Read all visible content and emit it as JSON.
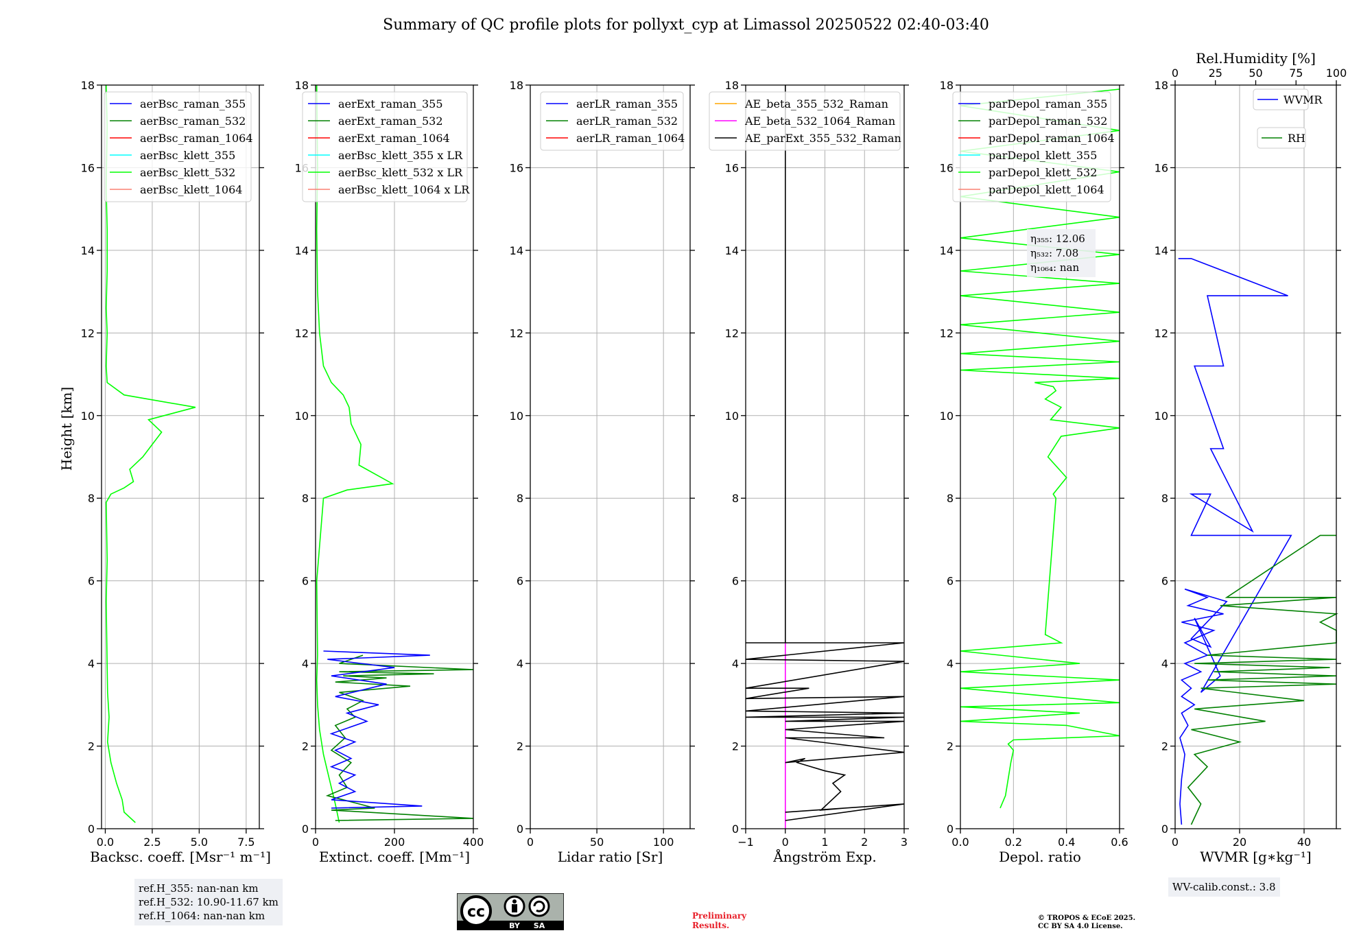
{
  "figure": {
    "title": "Summary of QC profile plots for pollyxt_cyp at Limassol 20250522 02:40-03:40",
    "y_axis_label": "Height [km]",
    "y_ticks": [
      "0",
      "2",
      "4",
      "6",
      "8",
      "10",
      "12",
      "14",
      "16",
      "18"
    ],
    "notes": {
      "ref_h_355": "ref.H_355: nan-nan km",
      "ref_h_532": "ref.H_532: 10.90-11.67 km",
      "ref_h_1064": "ref.H_1064: nan-nan km",
      "wv_calib": "WV-calib.const.: 3.8",
      "preliminary_1": "Preliminary",
      "preliminary_2": "Results.",
      "copyright_1": "© TROPOS & ECoE 2025.",
      "copyright_2": "CC BY SA 4.0 License.",
      "cc_by": "BY",
      "cc_sa": "SA",
      "cc_cc": "cc"
    },
    "colors": {
      "blue": "#0000ff",
      "green": "#008000",
      "red": "#ff0000",
      "cyan": "#00ffff",
      "lime": "#00ff00",
      "salmon": "#fa8072",
      "orange": "#ffa500",
      "magenta": "#ff00ff",
      "black": "#000000",
      "preliminary": "#e8202a"
    }
  },
  "chart_data": [
    {
      "type": "line",
      "panel": "backscatter",
      "xlabel": "Backsc. coeff. [Msr⁻¹ m⁻¹]",
      "xlim": [
        -0.2,
        8.2
      ],
      "xticks": [
        {
          "v": 0,
          "t": "0.0"
        },
        {
          "v": 2.5,
          "t": "2.5"
        },
        {
          "v": 5,
          "t": "5.0"
        },
        {
          "v": 7.5,
          "t": "7.5"
        }
      ],
      "ylim": [
        0,
        18
      ],
      "legend": [
        {
          "name": "aerBsc_raman_355",
          "color": "blue"
        },
        {
          "name": "aerBsc_raman_532",
          "color": "green"
        },
        {
          "name": "aerBsc_raman_1064",
          "color": "red"
        },
        {
          "name": "aerBsc_klett_355",
          "color": "cyan"
        },
        {
          "name": "aerBsc_klett_532",
          "color": "lime"
        },
        {
          "name": "aerBsc_klett_1064",
          "color": "salmon"
        }
      ],
      "series": [
        {
          "name": "aerBsc_klett_532",
          "color": "lime",
          "x": [
            1.6,
            1.0,
            0.9,
            0.6,
            0.3,
            0.12,
            0.2,
            0.12,
            0.1,
            0.08,
            0.05,
            0.1,
            0.05,
            0.3,
            1.0,
            1.5,
            1.3,
            2.0,
            2.5,
            3.0,
            2.3,
            4.8,
            1.0,
            0.1,
            0.05,
            0.1,
            0.05,
            0.1,
            0.1,
            0.05,
            0.1,
            0.05
          ],
          "y": [
            0.15,
            0.4,
            0.7,
            1.1,
            1.6,
            2.1,
            2.7,
            3.3,
            3.9,
            4.5,
            5.5,
            6.5,
            7.9,
            8.1,
            8.25,
            8.4,
            8.7,
            9.0,
            9.3,
            9.6,
            9.9,
            10.2,
            10.5,
            10.8,
            11.2,
            12.0,
            12.6,
            13.5,
            14.5,
            15.5,
            17.0,
            18.0
          ]
        }
      ]
    },
    {
      "type": "line",
      "panel": "extinction",
      "xlabel": "Extinct. coeff. [Mm⁻¹]",
      "xlim": [
        0,
        400
      ],
      "xticks": [
        {
          "v": 0,
          "t": "0"
        },
        {
          "v": 200,
          "t": "200"
        },
        {
          "v": 400,
          "t": "400"
        }
      ],
      "ylim": [
        0,
        18
      ],
      "legend": [
        {
          "name": "aerExt_raman_355",
          "color": "blue"
        },
        {
          "name": "aerExt_raman_532",
          "color": "green"
        },
        {
          "name": "aerExt_raman_1064",
          "color": "red"
        },
        {
          "name": "aerBsc_klett_355 x LR",
          "color": "cyan"
        },
        {
          "name": "aerBsc_klett_532 x LR",
          "color": "lime"
        },
        {
          "name": "aerBsc_klett_1064 x LR",
          "color": "salmon"
        }
      ],
      "series": [
        {
          "name": "aerBsc_klett_532 x LR",
          "color": "lime",
          "x": [
            60,
            50,
            35,
            20,
            10,
            5,
            3,
            5,
            3,
            20,
            80,
            195,
            110,
            115,
            90,
            85,
            70,
            40,
            20,
            10,
            5,
            3,
            5,
            3
          ],
          "y": [
            0.15,
            0.6,
            1.2,
            1.8,
            2.4,
            3.0,
            3.6,
            4.2,
            6.0,
            8.0,
            8.2,
            8.35,
            8.8,
            9.3,
            9.8,
            10.2,
            10.5,
            10.8,
            11.2,
            12.0,
            13.0,
            14.5,
            16.0,
            18.0
          ]
        },
        {
          "name": "aerExt_raman_532",
          "color": "green",
          "x": [
            50,
            400,
            40,
            150,
            30,
            80,
            60,
            90,
            40,
            75,
            50,
            100,
            80,
            120,
            60,
            240,
            50,
            180,
            70,
            300,
            60,
            400,
            60,
            120
          ],
          "y": [
            0.2,
            0.25,
            0.45,
            0.5,
            0.8,
            1.0,
            1.3,
            1.6,
            1.9,
            2.2,
            2.5,
            2.7,
            2.9,
            3.1,
            3.3,
            3.45,
            3.55,
            3.65,
            3.7,
            3.75,
            3.8,
            3.85,
            4.0,
            4.2
          ]
        },
        {
          "name": "aerExt_raman_355",
          "color": "blue",
          "x": [
            40,
            270,
            40,
            100,
            60,
            100,
            40,
            90,
            50,
            100,
            40,
            130,
            80,
            160,
            50,
            180,
            40,
            200,
            30,
            290,
            20
          ],
          "y": [
            0.5,
            0.55,
            0.7,
            0.9,
            1.1,
            1.3,
            1.5,
            1.7,
            1.9,
            2.1,
            2.3,
            2.6,
            2.8,
            3.0,
            3.2,
            3.5,
            3.7,
            3.9,
            4.1,
            4.2,
            4.3
          ]
        }
      ]
    },
    {
      "type": "line",
      "panel": "lidar_ratio",
      "xlabel": "Lidar ratio [Sr]",
      "xlim": [
        0,
        120
      ],
      "xticks": [
        {
          "v": 0,
          "t": "0"
        },
        {
          "v": 50,
          "t": "50"
        },
        {
          "v": 100,
          "t": "100"
        }
      ],
      "ylim": [
        0,
        18
      ],
      "legend": [
        {
          "name": "aerLR_raman_355",
          "color": "blue"
        },
        {
          "name": "aerLR_raman_532",
          "color": "green"
        },
        {
          "name": "aerLR_raman_1064",
          "color": "red"
        }
      ],
      "series": []
    },
    {
      "type": "line",
      "panel": "angstrom",
      "xlabel": "Ångström Exp.",
      "xlim": [
        -1,
        3
      ],
      "xticks": [
        {
          "v": -1,
          "t": "−1"
        },
        {
          "v": 0,
          "t": "0"
        },
        {
          "v": 1,
          "t": "1"
        },
        {
          "v": 2,
          "t": "2"
        },
        {
          "v": 3,
          "t": "3"
        }
      ],
      "ylim": [
        0,
        18
      ],
      "legend": [
        {
          "name": "AE_beta_355_532_Raman",
          "color": "orange"
        },
        {
          "name": "AE_beta_532_1064_Raman",
          "color": "magenta"
        },
        {
          "name": "AE_parExt_355_532_Raman",
          "color": "black"
        }
      ],
      "series": [
        {
          "name": "AE_beta_532_1064_Raman",
          "color": "magenta",
          "x": [
            0,
            0
          ],
          "y": [
            0,
            4.5
          ]
        },
        {
          "name": "AE_parExt_355_532_Raman",
          "color": "black",
          "x": [
            0,
            3,
            0,
            1.5,
            0.9,
            1.4,
            1.2,
            1.5,
            1.0,
            0.3,
            0.5,
            0,
            3,
            0,
            2.5,
            0,
            3,
            0,
            3,
            -1,
            3,
            -1,
            3,
            -1,
            0.6,
            -1,
            3,
            -1,
            3,
            -1,
            3,
            -1,
            0,
            0
          ],
          "y": [
            0.2,
            0.6,
            0.4,
            0.5,
            0.45,
            0.9,
            1.1,
            1.3,
            1.4,
            1.6,
            1.7,
            1.6,
            1.85,
            2.2,
            2.2,
            2.4,
            2.6,
            2.6,
            2.7,
            2.7,
            2.8,
            2.85,
            3.2,
            3.15,
            3.4,
            3.4,
            4.05,
            4.1,
            4.5,
            4.5,
            4.5,
            4.5,
            4.5,
            18
          ]
        }
      ]
    },
    {
      "type": "line",
      "panel": "depolarization",
      "xlabel": "Depol. ratio",
      "xlim": [
        0,
        0.6
      ],
      "xticks": [
        {
          "v": 0,
          "t": "0.0"
        },
        {
          "v": 0.2,
          "t": "0.2"
        },
        {
          "v": 0.4,
          "t": "0.4"
        },
        {
          "v": 0.6,
          "t": "0.6"
        }
      ],
      "ylim": [
        0,
        18
      ],
      "annotation": [
        "η₃₅₅: 12.06",
        "η₅₃₂: 7.08",
        "η₁₀₆₄: nan"
      ],
      "legend": [
        {
          "name": "parDepol_raman_355",
          "color": "blue"
        },
        {
          "name": "parDepol_raman_532",
          "color": "green"
        },
        {
          "name": "parDepol_raman_1064",
          "color": "red"
        },
        {
          "name": "parDepol_klett_355",
          "color": "cyan"
        },
        {
          "name": "parDepol_klett_532",
          "color": "lime"
        },
        {
          "name": "parDepol_klett_1064",
          "color": "salmon"
        }
      ],
      "series": [
        {
          "name": "parDepol_klett_532",
          "color": "lime",
          "x": [
            0.15,
            0.17,
            0.18,
            0.19,
            0.2,
            0.18,
            0.2,
            0.6,
            0.4,
            0.0,
            0.45,
            0.0,
            0.6,
            0.0,
            0.6,
            0.0,
            0.45,
            0.0,
            0.38,
            0.32,
            0.36,
            0.35,
            0.4,
            0.33,
            0.38,
            0.6,
            0.34,
            0.38,
            0.32,
            0.36,
            0.35,
            0.28,
            0.6,
            0.0,
            0.6,
            0.0,
            0.6,
            0.0,
            0.6,
            0.0,
            0.6,
            0.0,
            0.6,
            0.0,
            0.6,
            0.0,
            0.6,
            0.0,
            0.6,
            0.0,
            0.6
          ],
          "y": [
            0.5,
            0.8,
            1.2,
            1.6,
            1.9,
            2.05,
            2.15,
            2.25,
            2.5,
            2.6,
            2.8,
            2.95,
            3.05,
            3.4,
            3.6,
            3.8,
            4.0,
            4.3,
            4.5,
            4.7,
            8.0,
            8.1,
            8.5,
            9.0,
            9.5,
            9.7,
            9.9,
            10.2,
            10.4,
            10.6,
            10.7,
            10.8,
            10.9,
            11.1,
            11.3,
            11.5,
            11.8,
            12.2,
            12.5,
            12.9,
            13.2,
            13.5,
            13.9,
            14.3,
            14.8,
            15.3,
            15.9,
            16.4,
            16.9,
            17.5,
            17.9
          ]
        }
      ]
    },
    {
      "type": "line",
      "panel": "water_vapor",
      "xlabel": "WVMR [g∗kg⁻¹]",
      "top_label": "Rel.Humidity [%]",
      "xlim": [
        0,
        50
      ],
      "xticks": [
        {
          "v": 0,
          "t": "0"
        },
        {
          "v": 20,
          "t": "20"
        },
        {
          "v": 40,
          "t": "40"
        }
      ],
      "top_xlim": [
        0,
        100
      ],
      "top_xticks": [
        {
          "v": 0,
          "t": "0"
        },
        {
          "v": 25,
          "t": "25"
        },
        {
          "v": 50,
          "t": "50"
        },
        {
          "v": 75,
          "t": "75"
        },
        {
          "v": 100,
          "t": "100"
        }
      ],
      "ylim": [
        0,
        18
      ],
      "legend": [
        {
          "name": "WVMR",
          "color": "blue"
        },
        {
          "name": "RH",
          "color": "green"
        }
      ],
      "series": [
        {
          "name": "WVMR",
          "color": "blue",
          "x": [
            2,
            1.5,
            2,
            3,
            1.5,
            4,
            2,
            6,
            2,
            5,
            2,
            8,
            3,
            10,
            3,
            12,
            2,
            15,
            4,
            10,
            3,
            16,
            5,
            11,
            6,
            14,
            8,
            36,
            5,
            11,
            5,
            24,
            11,
            15,
            6,
            15,
            10,
            35,
            5,
            1,
            2
          ],
          "y": [
            0.1,
            0.6,
            1.2,
            1.8,
            2.2,
            2.5,
            2.8,
            3.0,
            3.2,
            3.4,
            3.6,
            3.8,
            4.0,
            4.2,
            4.5,
            4.8,
            5.0,
            5.2,
            5.4,
            5.6,
            5.8,
            5.5,
            4.6,
            4.4,
            5.1,
            3.7,
            3.3,
            7.1,
            7.1,
            8.1,
            8.1,
            7.2,
            9.2,
            9.2,
            11.2,
            11.2,
            12.9,
            12.9,
            13.8,
            13.8,
            13.8
          ]
        },
        {
          "name": "RH",
          "color": "green",
          "x": [
            5,
            8,
            4,
            10,
            6,
            20,
            5,
            28,
            6,
            40,
            8,
            50,
            10,
            50,
            12,
            48,
            6,
            50,
            10,
            50,
            50,
            45,
            50,
            14,
            50,
            16,
            45,
            50
          ],
          "y": [
            0.1,
            0.6,
            1.0,
            1.5,
            1.8,
            2.1,
            2.4,
            2.6,
            2.9,
            3.1,
            3.4,
            3.5,
            3.6,
            3.7,
            3.8,
            3.9,
            4.0,
            4.1,
            4.2,
            4.5,
            4.8,
            5.0,
            5.2,
            5.4,
            5.6,
            5.6,
            7.1,
            7.1
          ]
        }
      ]
    }
  ]
}
